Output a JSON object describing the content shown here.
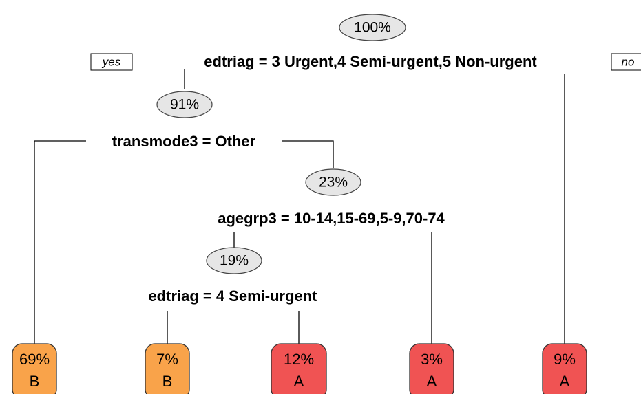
{
  "yes": "yes",
  "no": "no",
  "nodes": [
    {
      "percent": "100%",
      "split": "edtriag = 3 Urgent,4 Semi-urgent,5 Non-urgent"
    },
    {
      "percent": "91%",
      "split": "transmode3 = Other"
    },
    {
      "percent": "23%",
      "split": "agegrp3 = 10-14,15-69,5-9,70-74"
    },
    {
      "percent": "19%",
      "split": "edtriag = 4 Semi-urgent"
    }
  ],
  "leaves": [
    {
      "percent": "69%",
      "class": "B",
      "color": "#f9a34a"
    },
    {
      "percent": "7%",
      "class": "B",
      "color": "#f9a34a"
    },
    {
      "percent": "12%",
      "class": "A",
      "color": "#f05353"
    },
    {
      "percent": "3%",
      "class": "A",
      "color": "#f05353"
    },
    {
      "percent": "9%",
      "class": "A",
      "color": "#f05353"
    }
  ]
}
